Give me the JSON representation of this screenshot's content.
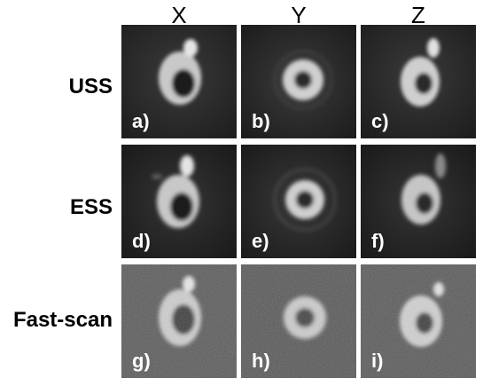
{
  "columns": [
    "X",
    "Y",
    "Z"
  ],
  "rows": [
    "USS",
    "ESS",
    "Fast-scan"
  ],
  "panels": [
    [
      "a)",
      "b)",
      "c)"
    ],
    [
      "d)",
      "e)",
      "f)"
    ],
    [
      "g)",
      "h)",
      "i)"
    ]
  ],
  "colors": {
    "background_dark": "#2a2a2a",
    "background_noisy": "#555555",
    "ring": "#d8d8d8",
    "core": "#1a1a1a",
    "label_text": "#ffffff"
  }
}
